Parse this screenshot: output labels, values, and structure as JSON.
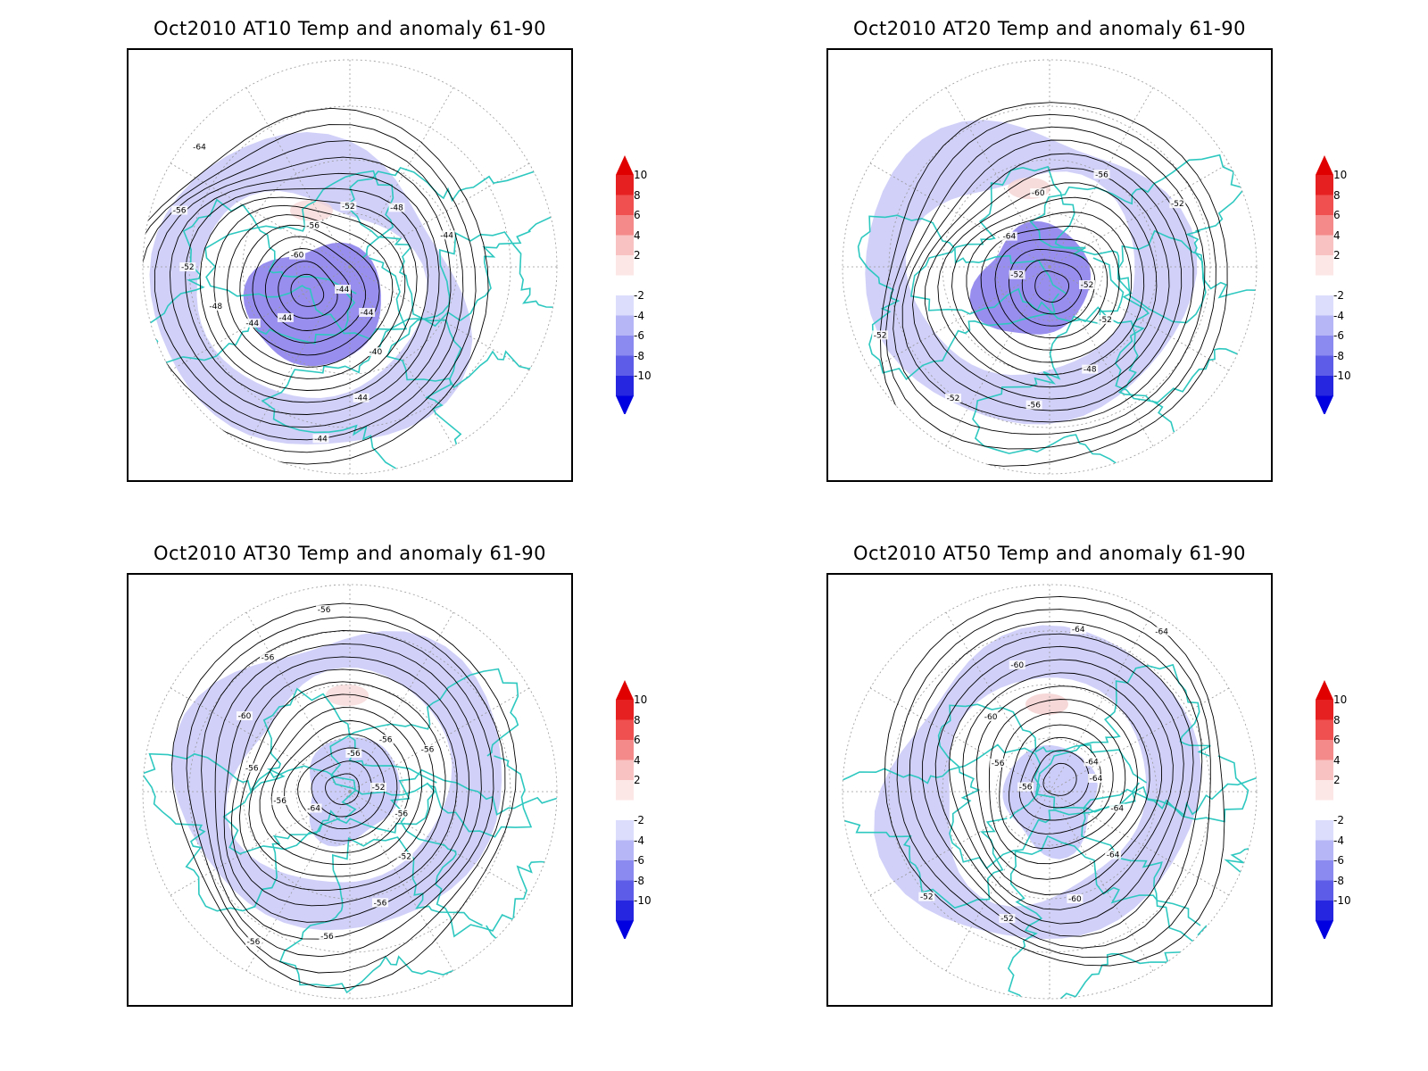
{
  "panels": [
    {
      "title": "Oct2010 AT10 Temp and anomaly 61-90",
      "level": "AT10",
      "contour_labels": [
        "-44",
        "-44",
        "-40",
        "-44",
        "-44",
        "-44",
        "-44",
        "-44",
        "-48",
        "-52",
        "-56",
        "-64",
        "-60",
        "-56",
        "-52",
        "-48",
        "-44"
      ],
      "cold_anomaly_strength": 0.9,
      "warm_anomaly_strength": 0.35
    },
    {
      "title": "Oct2010 AT20 Temp and anomaly 61-90",
      "level": "AT20",
      "contour_labels": [
        "-52",
        "-52",
        "-48",
        "-56",
        "-52",
        "-52",
        "-52",
        "-64",
        "-60",
        "-56",
        "-52"
      ],
      "cold_anomaly_strength": 0.6,
      "warm_anomaly_strength": 0.45
    },
    {
      "title": "Oct2010 AT30 Temp and anomaly 61-90",
      "level": "AT30",
      "contour_labels": [
        "-52",
        "-56",
        "-52",
        "-56",
        "-56",
        "-56",
        "-64",
        "-56",
        "-56",
        "-60",
        "-56",
        "-56",
        "-56",
        "-56",
        "-56"
      ],
      "cold_anomaly_strength": 0.35,
      "warm_anomaly_strength": 0.35
    },
    {
      "title": "Oct2010 AT50 Temp and anomaly 61-90",
      "level": "AT50",
      "contour_labels": [
        "-64",
        "-64",
        "-64",
        "-60",
        "-52",
        "-52",
        "-56",
        "-56",
        "-60",
        "-60",
        "-64",
        "-64",
        "-64"
      ],
      "cold_anomaly_strength": 0.35,
      "warm_anomaly_strength": 0.55
    }
  ],
  "colorbar": {
    "ticks": [
      "10",
      "8",
      "6",
      "4",
      "2",
      "-2",
      "-4",
      "-6",
      "-8",
      "-10"
    ],
    "colors": [
      "#e62020",
      "#f05050",
      "#f58a8a",
      "#f9c2c2",
      "#fde6e6",
      "#ffffff",
      "#dcdcfc",
      "#b6b6f6",
      "#8a8af0",
      "#5c5ce8",
      "#2626e0"
    ],
    "top_arrow_color": "#e00000",
    "bottom_arrow_color": "#0000e0"
  },
  "colors": {
    "coastline": "#2ec8c0",
    "contour": "#000000",
    "grid": "#999999",
    "cold_fill": "#c8c8f8",
    "cold_core": "#8c82ec",
    "warm_fill": "#f6d6d6"
  }
}
